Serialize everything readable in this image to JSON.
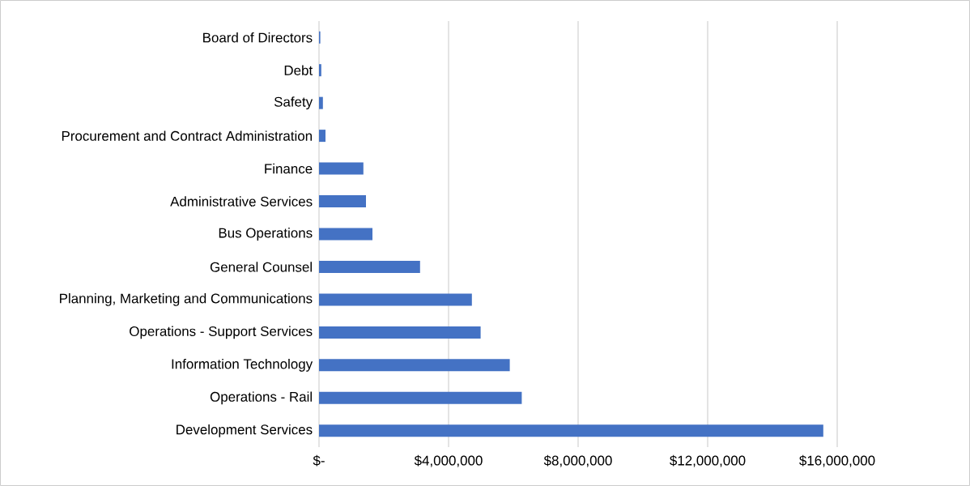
{
  "chart_data": {
    "type": "bar",
    "orientation": "horizontal",
    "categories": [
      "Board of Directors",
      "Debt",
      "Safety",
      "Procurement and Contract Administration",
      "Finance",
      "Administrative Services",
      "Bus Operations",
      "General Counsel",
      "Planning, Marketing and Communications",
      "Operations - Support Services",
      "Information Technology",
      "Operations - Rail",
      "Development Services"
    ],
    "values": [
      40000,
      70000,
      120000,
      200000,
      1370000,
      1450000,
      1650000,
      3120000,
      4720000,
      4990000,
      5890000,
      6260000,
      15570000
    ],
    "color": "#4472c4",
    "xlim": [
      0,
      16000000
    ],
    "xticks": [
      {
        "value": 0,
        "label": "$-"
      },
      {
        "value": 4000000,
        "label": "$4,000,000"
      },
      {
        "value": 8000000,
        "label": "$8,000,000"
      },
      {
        "value": 12000000,
        "label": "$12,000,000"
      },
      {
        "value": 16000000,
        "label": "$16,000,000"
      }
    ],
    "grid": "x"
  }
}
